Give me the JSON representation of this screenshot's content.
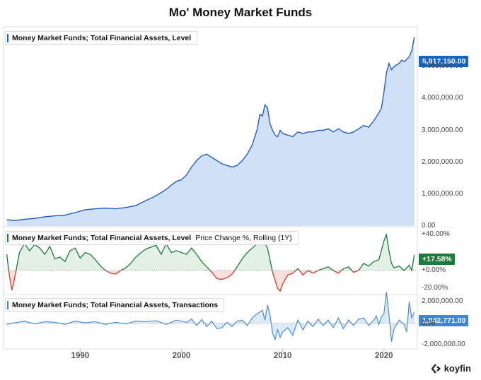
{
  "header": {
    "title": "Mo' Money Market Funds"
  },
  "brand": {
    "name": "koyfin"
  },
  "colors": {
    "level": "#1f5fc4",
    "level_fill": "#cfe0f7",
    "pos": "#1e7a3c",
    "neg": "#d23a2e",
    "trans": "#3d86d4",
    "tag_blue": "#1565c8",
    "tag_green": "#1e7a3c"
  },
  "chart_data": [
    {
      "type": "area",
      "legend": "Money Market Funds; Total Financial Assets, Level",
      "current_label": "5,917,150.00",
      "ylim": [
        0,
        6200000
      ],
      "yticks": [
        "0.00",
        "1,000,000.00",
        "2,000,000.00",
        "3,000,000.00",
        "4,000,000.00",
        "5,000,000.00"
      ],
      "ytick_values": [
        0,
        1000000,
        2000000,
        3000000,
        4000000,
        5000000
      ],
      "x": [
        1982.75,
        1983.5,
        1984.5,
        1985.5,
        1986.5,
        1987.5,
        1988.5,
        1989.5,
        1990.5,
        1991.5,
        1992.5,
        1993.5,
        1994.5,
        1995.5,
        1996.5,
        1997.5,
        1998.5,
        1999.0,
        1999.5,
        2000.0,
        2000.5,
        2001.0,
        2001.5,
        2002.0,
        2002.5,
        2003.0,
        2003.5,
        2004.0,
        2004.5,
        2005.0,
        2005.5,
        2006.0,
        2006.5,
        2007.0,
        2007.5,
        2007.75,
        2008.0,
        2008.25,
        2008.5,
        2008.75,
        2009.0,
        2009.25,
        2009.5,
        2009.75,
        2010.0,
        2010.5,
        2011.0,
        2011.5,
        2012.0,
        2012.5,
        2013.0,
        2013.5,
        2014.0,
        2014.5,
        2015.0,
        2015.5,
        2016.0,
        2016.5,
        2017.0,
        2017.5,
        2018.0,
        2018.5,
        2019.0,
        2019.5,
        2019.75,
        2020.0,
        2020.25,
        2020.5,
        2020.75,
        2021.0,
        2021.5,
        2021.75,
        2022.0,
        2022.5,
        2022.75,
        2023.0
      ],
      "y": [
        200000,
        170000,
        210000,
        240000,
        290000,
        320000,
        340000,
        420000,
        510000,
        540000,
        560000,
        540000,
        580000,
        640000,
        800000,
        950000,
        1150000,
        1280000,
        1400000,
        1450000,
        1600000,
        1850000,
        2050000,
        2200000,
        2250000,
        2150000,
        2050000,
        1950000,
        1900000,
        1850000,
        1900000,
        2050000,
        2250000,
        2550000,
        3050000,
        3500000,
        3450000,
        3800000,
        3700000,
        3200000,
        3000000,
        2850000,
        2800000,
        3000000,
        2900000,
        2850000,
        2800000,
        2950000,
        2900000,
        2950000,
        2950000,
        3000000,
        3000000,
        3050000,
        2950000,
        3050000,
        2950000,
        2900000,
        2950000,
        3050000,
        3150000,
        3100000,
        3300000,
        3550000,
        3700000,
        4200000,
        4800000,
        5100000,
        4900000,
        5000000,
        5100000,
        5200000,
        5150000,
        5300000,
        5500000,
        5917150
      ]
    },
    {
      "type": "area",
      "legend": "Money Market Funds; Total Financial Assets, Level",
      "legend_extra": "Price Change %, Rolling (1Y)",
      "current_label": "+17.58%",
      "ylim": [
        -26,
        48
      ],
      "yticks": [
        "+40.00%",
        "+0.00%",
        "-20.00%"
      ],
      "ytick_values": [
        40,
        0,
        -20
      ],
      "x": [
        1982.75,
        1983.0,
        1983.25,
        1983.5,
        1983.75,
        1984.0,
        1984.5,
        1985.0,
        1985.5,
        1986.0,
        1986.5,
        1987.0,
        1987.5,
        1988.0,
        1988.5,
        1989.0,
        1989.5,
        1990.0,
        1990.5,
        1991.0,
        1991.5,
        1992.0,
        1992.5,
        1993.0,
        1993.5,
        1994.0,
        1994.5,
        1995.0,
        1995.5,
        1996.0,
        1996.5,
        1997.0,
        1997.5,
        1998.0,
        1998.5,
        1999.0,
        1999.5,
        2000.0,
        2000.5,
        2001.0,
        2001.5,
        2002.0,
        2002.5,
        2003.0,
        2003.5,
        2004.0,
        2004.5,
        2005.0,
        2005.5,
        2006.0,
        2006.5,
        2007.0,
        2007.5,
        2008.0,
        2008.5,
        2009.0,
        2009.5,
        2009.75,
        2010.0,
        2010.5,
        2011.0,
        2011.5,
        2012.0,
        2012.5,
        2013.0,
        2013.5,
        2014.0,
        2014.5,
        2015.0,
        2015.5,
        2016.0,
        2016.5,
        2017.0,
        2017.5,
        2018.0,
        2018.5,
        2019.0,
        2019.5,
        2020.0,
        2020.25,
        2020.5,
        2020.75,
        2021.0,
        2021.5,
        2022.0,
        2022.5,
        2022.75,
        2023.0
      ],
      "y": [
        18,
        -5,
        -22,
        -10,
        5,
        20,
        30,
        22,
        29,
        25,
        18,
        27,
        13,
        15,
        10,
        22,
        25,
        14,
        20,
        18,
        12,
        5,
        0,
        -3,
        -4,
        0,
        3,
        8,
        15,
        20,
        24,
        26,
        28,
        18,
        30,
        20,
        22,
        20,
        18,
        25,
        18,
        10,
        4,
        -2,
        -9,
        -10,
        -8,
        -4,
        4,
        13,
        20,
        25,
        30,
        35,
        25,
        -2,
        -20,
        -23,
        -15,
        -5,
        -3,
        2,
        -5,
        0,
        -3,
        0,
        2,
        4,
        0,
        -3,
        2,
        4,
        -2,
        0,
        8,
        5,
        10,
        12,
        33,
        40,
        22,
        8,
        3,
        5,
        0,
        6,
        0,
        17.58
      ]
    },
    {
      "type": "area",
      "legend": "Money Market Funds; Total Financial Assets, Transactions",
      "current_label": "1,042,771.00",
      "ylim": [
        -2300000,
        2600000
      ],
      "yticks": [
        "2,000,000.00",
        "0.00",
        "-2,000,000.00"
      ],
      "ytick_values": [
        2000000,
        0,
        -2000000
      ],
      "x": [
        1982.75,
        1983.5,
        1984.5,
        1985.5,
        1986.5,
        1987.5,
        1988.5,
        1989.5,
        1990.5,
        1991.5,
        1992.5,
        1993.5,
        1994.5,
        1995.5,
        1996.5,
        1997.5,
        1998.5,
        1999.5,
        2000.5,
        2001.0,
        2001.5,
        2002.0,
        2002.5,
        2003.0,
        2003.5,
        2004.0,
        2004.5,
        2005.0,
        2005.5,
        2006.0,
        2006.5,
        2007.0,
        2007.5,
        2008.0,
        2008.25,
        2008.5,
        2008.75,
        2009.0,
        2009.25,
        2009.5,
        2009.75,
        2010.0,
        2010.5,
        2011.0,
        2011.5,
        2012.0,
        2012.5,
        2013.0,
        2013.5,
        2014.0,
        2014.5,
        2015.0,
        2015.5,
        2016.0,
        2016.5,
        2017.0,
        2017.5,
        2018.0,
        2018.5,
        2019.0,
        2019.25,
        2019.5,
        2019.75,
        2020.0,
        2020.25,
        2020.5,
        2020.75,
        2021.0,
        2021.5,
        2022.0,
        2022.25,
        2022.5,
        2022.75,
        2023.0
      ],
      "y": [
        -100000,
        50000,
        200000,
        -50000,
        150000,
        100000,
        -100000,
        200000,
        50000,
        150000,
        -100000,
        100000,
        -50000,
        200000,
        150000,
        250000,
        -100000,
        300000,
        100000,
        400000,
        -200000,
        350000,
        -300000,
        200000,
        -500000,
        -400000,
        100000,
        -300000,
        200000,
        300000,
        -200000,
        500000,
        900000,
        1200000,
        300000,
        1700000,
        800000,
        -900000,
        -1500000,
        -600000,
        -1300000,
        -800000,
        -400000,
        -1100000,
        300000,
        -600000,
        200000,
        -300000,
        400000,
        -200000,
        300000,
        -400000,
        500000,
        -500000,
        300000,
        -200000,
        400000,
        500000,
        -200000,
        300000,
        700000,
        -100000,
        600000,
        900000,
        2900000,
        800000,
        -1700000,
        -500000,
        300000,
        -100000,
        -800000,
        2000000,
        500000,
        1042771
      ]
    }
  ],
  "x_axis": {
    "ticks": [
      "1990",
      "2000",
      "2010",
      "2020"
    ],
    "tick_values": [
      1990,
      2000,
      2010,
      2020
    ],
    "xlim": [
      1982.5,
      2023.3
    ]
  }
}
